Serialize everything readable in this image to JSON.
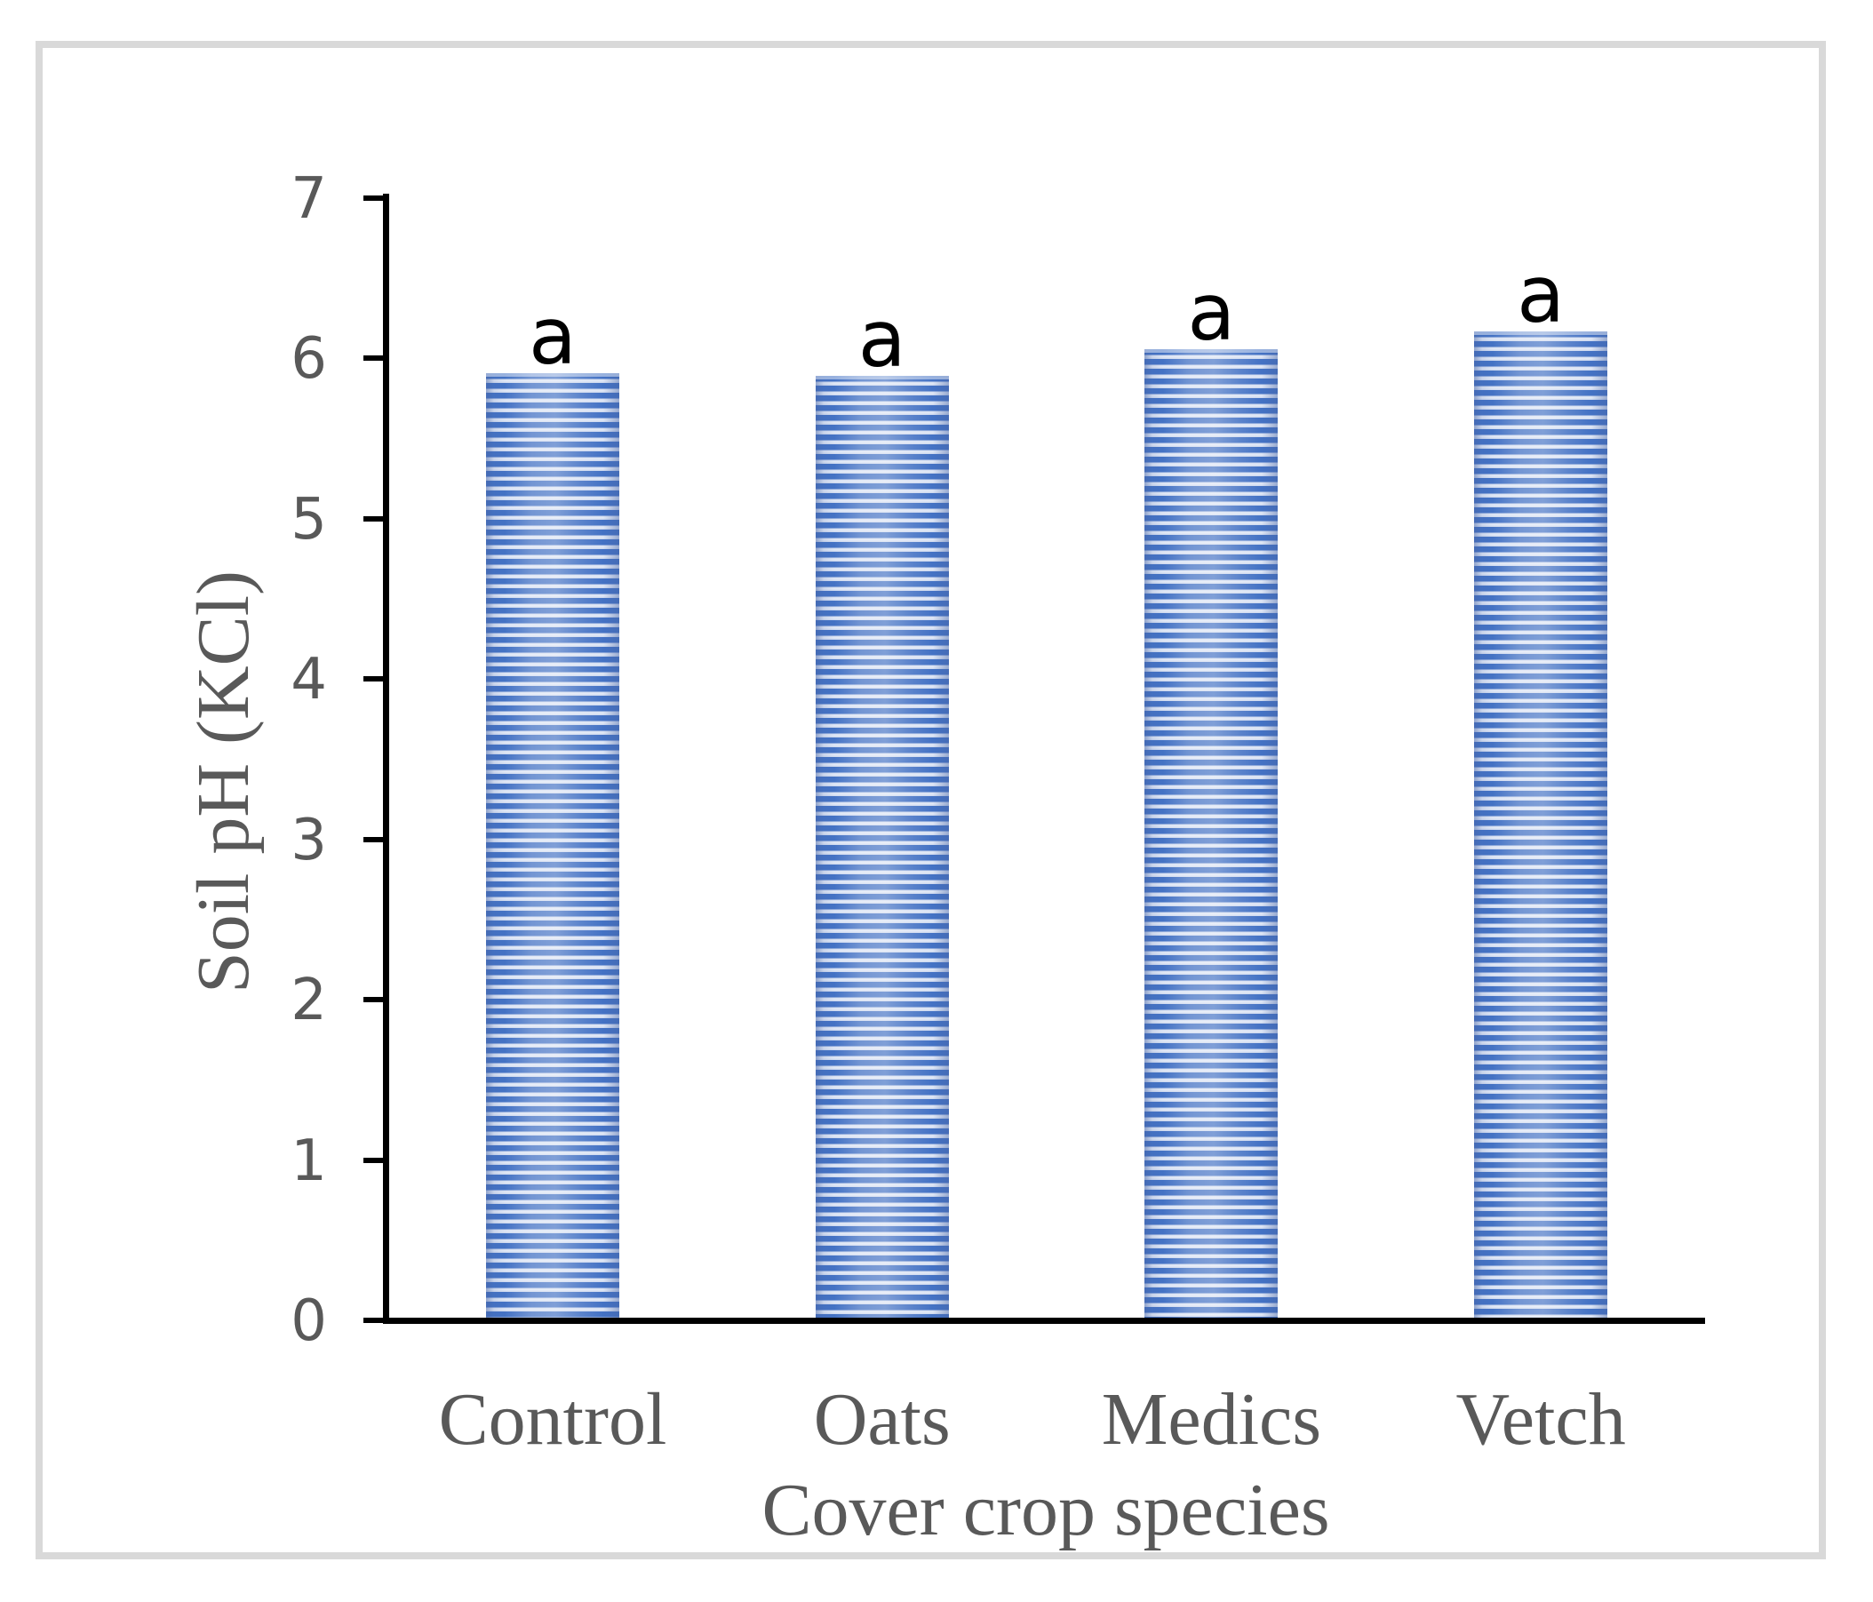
{
  "chart_data": {
    "type": "bar",
    "title": "",
    "categories": [
      "Control",
      "Oats",
      "Medics",
      "Vetch"
    ],
    "values": [
      5.91,
      5.89,
      6.06,
      6.17
    ],
    "bar_annotations": [
      "a",
      "a",
      "a",
      "a"
    ],
    "xlabel": "Cover crop species",
    "ylabel": "Soil pH (KCl)",
    "yticks": [
      0,
      1,
      2,
      3,
      4,
      5,
      6,
      7
    ],
    "ylim": [
      0,
      7
    ],
    "grid": false,
    "legend": false,
    "bar_fill_pattern": "horizontal-stripes",
    "colors": {
      "bar_stripe_blue": "#4472C4",
      "bar_stripe_light": "#D9E2F3",
      "axis_line": "#000000",
      "tick_label": "#595959",
      "category_label": "#595959",
      "axis_title": "#595959",
      "annotation_label": "#000000",
      "frame_border": "#D9D9D9",
      "background": "#FFFFFF"
    }
  }
}
